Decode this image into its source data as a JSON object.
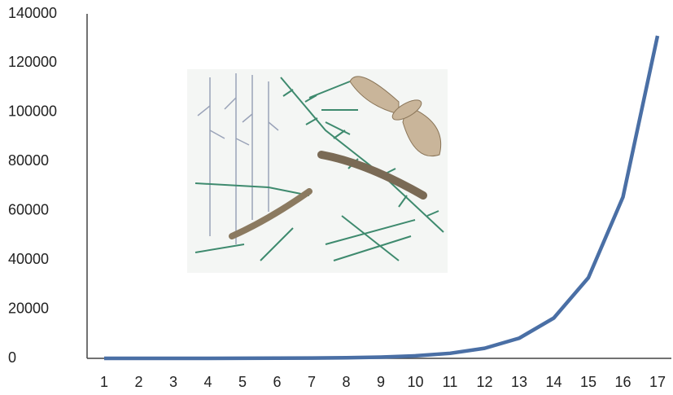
{
  "chart_data": {
    "type": "line",
    "categories": [
      1,
      2,
      3,
      4,
      5,
      6,
      7,
      8,
      9,
      10,
      11,
      12,
      13,
      14,
      15,
      16,
      17
    ],
    "values": [
      2,
      4,
      8,
      16,
      32,
      64,
      128,
      256,
      512,
      1024,
      2048,
      4096,
      8192,
      16384,
      32768,
      65536,
      131072
    ],
    "color": "#4a6fa5",
    "ylim": [
      0,
      140000
    ],
    "yticks": [
      0,
      20000,
      40000,
      60000,
      80000,
      100000,
      120000,
      140000
    ],
    "grid": false
  }
}
